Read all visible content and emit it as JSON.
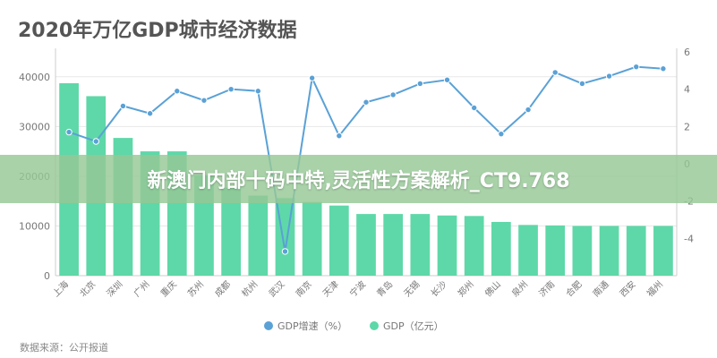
{
  "title": "2020年万亿GDP城市经济数据",
  "source": "数据来源：公开报道",
  "banner": "新澳门内部十码中特,灵活性方案解析_CT9.768",
  "colors": {
    "bar": "#5ed8a8",
    "line": "#5aa1d6",
    "axis_text": "#777777",
    "grid": "#e8e8e8"
  },
  "chart_data": {
    "type": "bar",
    "categories": [
      "上海",
      "北京",
      "深圳",
      "广州",
      "重庆",
      "苏州",
      "成都",
      "杭州",
      "武汉",
      "南京",
      "天津",
      "宁波",
      "青岛",
      "无锡",
      "长沙",
      "郑州",
      "佛山",
      "泉州",
      "济南",
      "合肥",
      "南通",
      "西安",
      "福州"
    ],
    "series": [
      {
        "name": "GDP（亿元）",
        "type": "bar",
        "axis": "left",
        "values": [
          38700,
          36100,
          27700,
          25000,
          25000,
          20200,
          17700,
          16100,
          15600,
          14800,
          14100,
          12400,
          12400,
          12400,
          12100,
          12000,
          10800,
          10200,
          10100,
          10000,
          10000,
          10000,
          10000
        ]
      },
      {
        "name": "GDP增速（%）",
        "type": "line",
        "axis": "right",
        "values": [
          1.7,
          1.2,
          3.1,
          2.7,
          3.9,
          3.4,
          4.0,
          3.9,
          -4.7,
          4.6,
          1.5,
          3.3,
          3.7,
          4.3,
          4.5,
          3.0,
          1.6,
          2.9,
          4.9,
          4.3,
          4.7,
          5.2,
          5.1
        ]
      }
    ],
    "y_left": {
      "ticks": [
        0,
        10000,
        20000,
        30000,
        40000
      ],
      "ylim": [
        0,
        45000
      ]
    },
    "y_right": {
      "ticks": [
        -4,
        -2,
        0,
        2,
        4,
        6
      ],
      "ylim": [
        -6,
        6
      ]
    },
    "grid": true,
    "legend_position": "bottom-center",
    "legend": [
      "GDP增速（%）",
      "GDP（亿元）"
    ]
  }
}
